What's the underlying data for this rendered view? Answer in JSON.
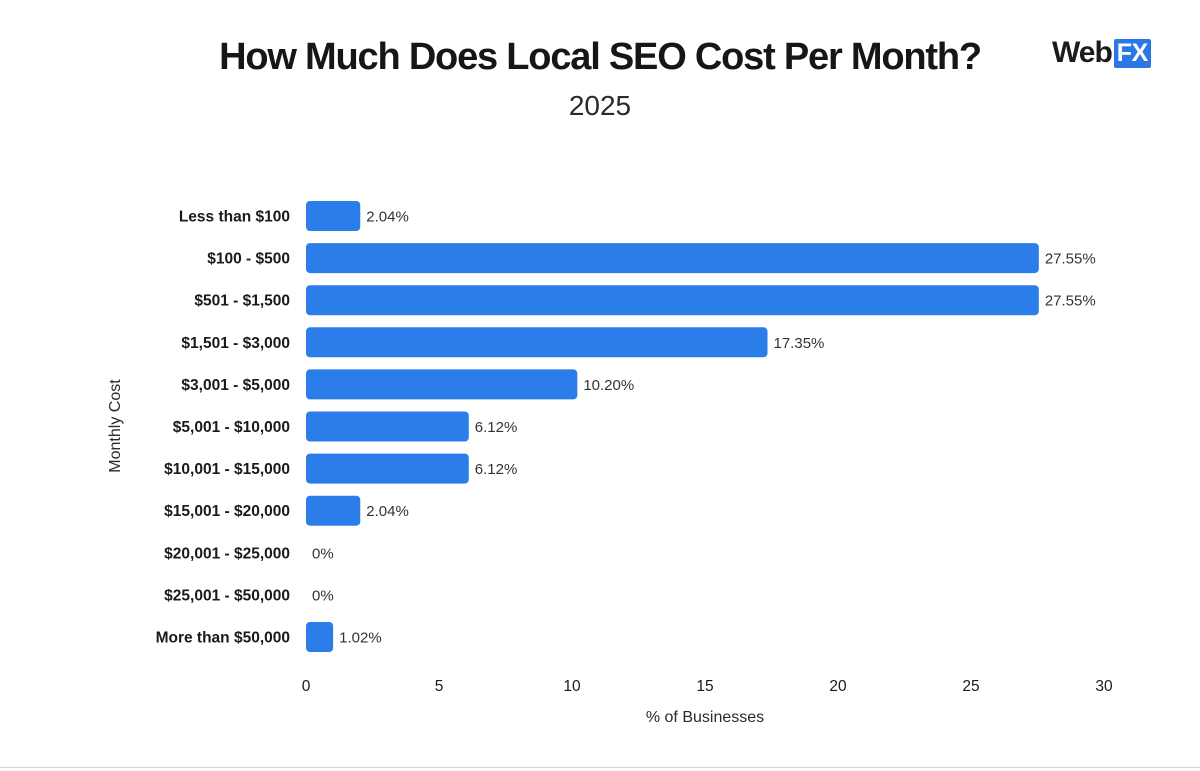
{
  "header": {
    "title": "How Much Does Local SEO Cost Per Month?",
    "subtitle": "2025"
  },
  "logo": {
    "text_main": "Web",
    "text_box": "FX",
    "box_color": "#2b78e4"
  },
  "chart_data": {
    "type": "bar",
    "orientation": "horizontal",
    "title": "How Much Does Local SEO Cost Per Month?",
    "subtitle": "2025",
    "xlabel": "% of Businesses",
    "ylabel": "Monthly Cost",
    "xlim": [
      0,
      30
    ],
    "xticks": [
      0,
      5,
      10,
      15,
      20,
      25,
      30
    ],
    "grid": false,
    "bar_color": "#2b7de9",
    "categories": [
      "Less than $100",
      "$100 - $500",
      "$501 - $1,500",
      "$1,501 - $3,000",
      "$3,001 - $5,000",
      "$5,001 - $10,000",
      "$10,001 - $15,000",
      "$15,001 - $20,000",
      "$20,001 - $25,000",
      "$25,001 - $50,000",
      "More than $50,000"
    ],
    "values": [
      2.04,
      27.55,
      27.55,
      17.35,
      10.2,
      6.12,
      6.12,
      2.04,
      0,
      0,
      1.02
    ],
    "value_labels": [
      "2.04%",
      "27.55%",
      "27.55%",
      "17.35%",
      "10.20%",
      "6.12%",
      "6.12%",
      "2.04%",
      "0%",
      "0%",
      "1.02%"
    ]
  }
}
